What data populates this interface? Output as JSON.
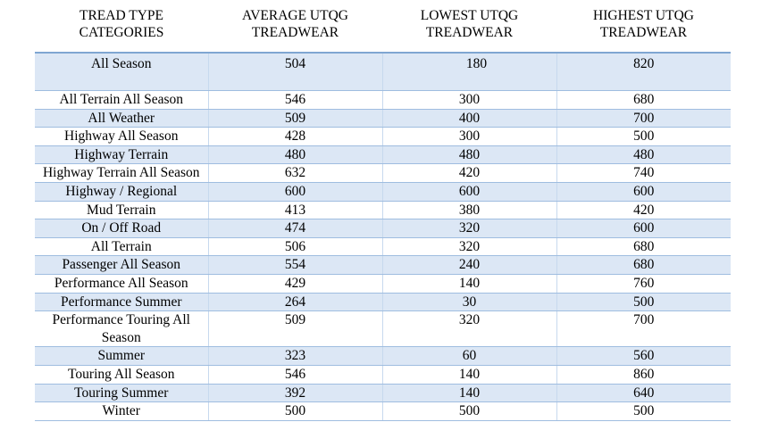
{
  "table": {
    "headers": [
      {
        "line1": "TREAD TYPE",
        "line2": "CATEGORIES"
      },
      {
        "line1": "AVERAGE UTQG",
        "line2": "TREADWEAR"
      },
      {
        "line1": "LOWEST UTQG",
        "line2": "TREADWEAR"
      },
      {
        "line1": "HIGHEST UTQG",
        "line2": "TREADWEAR"
      }
    ],
    "rows": [
      {
        "category": "All Season",
        "average": "504",
        "lowest": "180",
        "highest": "820"
      },
      {
        "category": "All Terrain All Season",
        "average": "546",
        "lowest": "300",
        "highest": "680"
      },
      {
        "category": "All Weather",
        "average": "509",
        "lowest": "400",
        "highest": "700"
      },
      {
        "category": "Highway All Season",
        "average": "428",
        "lowest": "300",
        "highest": "500"
      },
      {
        "category": "Highway Terrain",
        "average": "480",
        "lowest": "480",
        "highest": "480"
      },
      {
        "category": "Highway Terrain All Season",
        "average": "632",
        "lowest": "420",
        "highest": "740"
      },
      {
        "category": "Highway / Regional",
        "average": "600",
        "lowest": "600",
        "highest": "600"
      },
      {
        "category": "Mud Terrain",
        "average": "413",
        "lowest": "380",
        "highest": "420"
      },
      {
        "category": "On / Off Road",
        "average": "474",
        "lowest": "320",
        "highest": "600"
      },
      {
        "category": "All Terrain",
        "average": "506",
        "lowest": "320",
        "highest": "680"
      },
      {
        "category": "Passenger All Season",
        "average": "554",
        "lowest": "240",
        "highest": "680"
      },
      {
        "category": "Performance All Season",
        "average": "429",
        "lowest": "140",
        "highest": "760"
      },
      {
        "category": "Performance Summer",
        "average": "264",
        "lowest": "30",
        "highest": "500"
      },
      {
        "category": "Performance Touring All Season",
        "average": "509",
        "lowest": "320",
        "highest": "700"
      },
      {
        "category": "Summer",
        "average": "323",
        "lowest": "60",
        "highest": "560"
      },
      {
        "category": "Touring All Season",
        "average": "546",
        "lowest": "140",
        "highest": "860"
      },
      {
        "category": "Touring Summer",
        "average": "392",
        "lowest": "140",
        "highest": "640"
      },
      {
        "category": "Winter",
        "average": "500",
        "lowest": "500",
        "highest": "500"
      }
    ]
  },
  "colors": {
    "row_shade": "#dce7f5",
    "rule": "#9fbde0",
    "header_rule": "#7fa6d2"
  }
}
